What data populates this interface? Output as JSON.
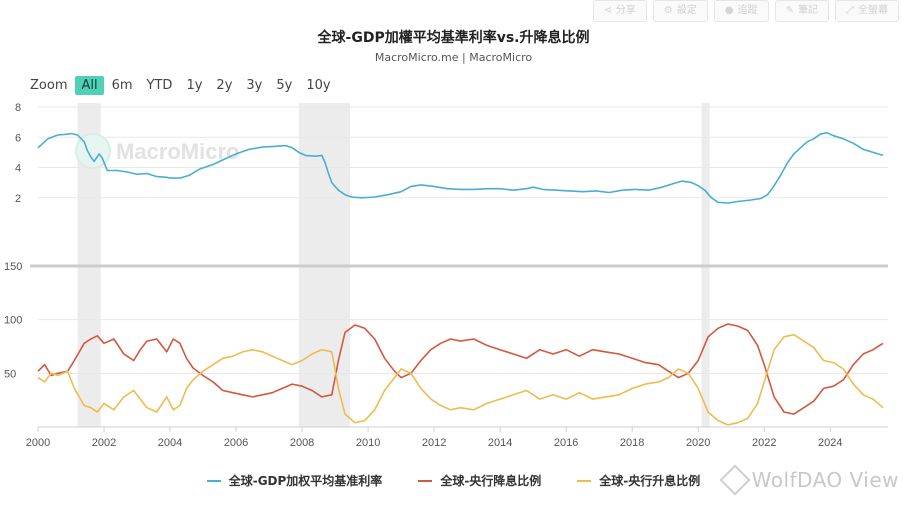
{
  "toolbar": {
    "buttons": [
      {
        "icon": "share-icon",
        "glyph": "⋖",
        "label": "分享"
      },
      {
        "icon": "gear-icon",
        "glyph": "⚙",
        "label": "設定"
      },
      {
        "icon": "user-icon",
        "glyph": "●",
        "label": "追蹤"
      },
      {
        "icon": "pencil-icon",
        "glyph": "✎",
        "label": "筆記"
      },
      {
        "icon": "expand-icon",
        "glyph": "⤢",
        "label": "全螢幕"
      }
    ]
  },
  "header": {
    "title": "全球-GDP加權平均基準利率vs.升降息比例",
    "subtitle": "MacroMicro.me | MacroMicro"
  },
  "zoom": {
    "label": "Zoom",
    "options": [
      "All",
      "6m",
      "YTD",
      "1y",
      "2y",
      "3y",
      "5y",
      "10y"
    ],
    "active": "All"
  },
  "watermarks": {
    "chart": "MacroMicro",
    "corner": "WolfDAO View"
  },
  "colors": {
    "rate": "#4aaed0",
    "cut": "#d4573f",
    "hike": "#efbb4e",
    "recession_band": "#e6e6e6",
    "grid": "#e8e8e8",
    "divider": "#cccccc"
  },
  "chart_data": [
    {
      "type": "line",
      "panel": "top",
      "ylim": [
        0,
        8
      ],
      "yticks": [
        2,
        4,
        6,
        8
      ],
      "ylabel": "",
      "xlim": [
        2000,
        2025.75
      ],
      "shaded_periods": [
        [
          2001.2,
          2001.9
        ],
        [
          2007.9,
          2009.45
        ],
        [
          2020.1,
          2020.35
        ]
      ],
      "series": [
        {
          "name": "全球-GDP加权平均基准利率",
          "color": "#4aaed0",
          "x": [
            2000.0,
            2000.3,
            2000.6,
            2000.9,
            2001.0,
            2001.2,
            2001.4,
            2001.5,
            2001.6,
            2001.7,
            2001.85,
            2001.95,
            2002.1,
            2002.4,
            2002.7,
            2002.9,
            2003.0,
            2003.3,
            2003.6,
            2003.9,
            2004.0,
            2004.3,
            2004.6,
            2004.9,
            2005.3,
            2005.6,
            2006.0,
            2006.4,
            2006.8,
            2007.2,
            2007.5,
            2007.7,
            2007.9,
            2008.1,
            2008.4,
            2008.6,
            2008.7,
            2008.8,
            2008.9,
            2009.1,
            2009.3,
            2009.5,
            2009.8,
            2010.2,
            2010.6,
            2011.0,
            2011.3,
            2011.6,
            2012.0,
            2012.4,
            2012.8,
            2013.2,
            2013.6,
            2014.0,
            2014.4,
            2014.8,
            2015.0,
            2015.3,
            2015.7,
            2016.1,
            2016.5,
            2016.9,
            2017.3,
            2017.7,
            2018.1,
            2018.5,
            2018.9,
            2019.2,
            2019.5,
            2019.8,
            2020.0,
            2020.2,
            2020.4,
            2020.6,
            2020.9,
            2021.2,
            2021.6,
            2021.9,
            2022.1,
            2022.3,
            2022.5,
            2022.7,
            2022.9,
            2023.1,
            2023.3,
            2023.5,
            2023.7,
            2023.9,
            2024.1,
            2024.4,
            2024.7,
            2025.0,
            2025.3,
            2025.6
          ],
          "values": [
            5.3,
            5.9,
            6.15,
            6.2,
            6.25,
            6.15,
            5.7,
            5.1,
            4.7,
            4.4,
            4.9,
            4.6,
            3.8,
            3.8,
            3.7,
            3.6,
            3.55,
            3.6,
            3.4,
            3.35,
            3.3,
            3.3,
            3.5,
            3.9,
            4.2,
            4.5,
            4.9,
            5.2,
            5.35,
            5.4,
            5.45,
            5.3,
            5.0,
            4.8,
            4.75,
            4.8,
            4.3,
            3.6,
            3.0,
            2.5,
            2.2,
            2.05,
            2.0,
            2.05,
            2.2,
            2.4,
            2.75,
            2.85,
            2.75,
            2.6,
            2.55,
            2.55,
            2.6,
            2.6,
            2.5,
            2.6,
            2.7,
            2.55,
            2.5,
            2.45,
            2.4,
            2.45,
            2.35,
            2.5,
            2.55,
            2.5,
            2.7,
            2.9,
            3.1,
            3.0,
            2.8,
            2.5,
            2.0,
            1.7,
            1.65,
            1.75,
            1.85,
            1.95,
            2.2,
            2.8,
            3.5,
            4.3,
            4.9,
            5.3,
            5.7,
            5.9,
            6.2,
            6.3,
            6.1,
            5.9,
            5.6,
            5.2,
            5.0,
            4.8
          ]
        }
      ]
    },
    {
      "type": "line",
      "panel": "bottom",
      "ylim": [
        0,
        150
      ],
      "yticks": [
        50,
        100,
        150
      ],
      "xlim": [
        2000,
        2025.75
      ],
      "xticks": [
        2000,
        2002,
        2004,
        2006,
        2008,
        2010,
        2012,
        2014,
        2016,
        2018,
        2020,
        2022,
        2024
      ],
      "shaded_periods": [
        [
          2001.2,
          2001.9
        ],
        [
          2007.9,
          2009.45
        ],
        [
          2020.1,
          2020.35
        ]
      ],
      "series": [
        {
          "name": "全球-央行降息比例",
          "color": "#d4573f",
          "x": [
            2000.0,
            2000.2,
            2000.4,
            2000.6,
            2000.9,
            2001.1,
            2001.4,
            2001.6,
            2001.8,
            2002.0,
            2002.3,
            2002.6,
            2002.9,
            2003.1,
            2003.3,
            2003.6,
            2003.9,
            2004.1,
            2004.3,
            2004.5,
            2004.7,
            2005.0,
            2005.3,
            2005.6,
            2005.9,
            2006.2,
            2006.5,
            2006.8,
            2007.1,
            2007.4,
            2007.7,
            2008.0,
            2008.3,
            2008.6,
            2008.9,
            2009.1,
            2009.3,
            2009.6,
            2009.9,
            2010.2,
            2010.5,
            2010.8,
            2011.0,
            2011.3,
            2011.6,
            2011.9,
            2012.2,
            2012.5,
            2012.8,
            2013.2,
            2013.6,
            2014.0,
            2014.4,
            2014.8,
            2015.2,
            2015.6,
            2016.0,
            2016.4,
            2016.8,
            2017.2,
            2017.6,
            2018.0,
            2018.4,
            2018.8,
            2019.1,
            2019.4,
            2019.7,
            2020.0,
            2020.3,
            2020.6,
            2020.9,
            2021.2,
            2021.5,
            2021.8,
            2022.0,
            2022.3,
            2022.6,
            2022.9,
            2023.2,
            2023.5,
            2023.8,
            2024.1,
            2024.4,
            2024.7,
            2025.0,
            2025.3,
            2025.6
          ],
          "values": [
            52,
            58,
            48,
            50,
            52,
            62,
            78,
            82,
            85,
            78,
            82,
            68,
            62,
            72,
            80,
            82,
            70,
            82,
            78,
            64,
            55,
            48,
            42,
            34,
            32,
            30,
            28,
            30,
            32,
            36,
            40,
            38,
            34,
            28,
            30,
            62,
            88,
            95,
            92,
            82,
            64,
            52,
            46,
            50,
            62,
            72,
            78,
            82,
            80,
            82,
            76,
            72,
            68,
            64,
            72,
            68,
            72,
            66,
            72,
            70,
            68,
            64,
            60,
            58,
            52,
            46,
            50,
            62,
            84,
            92,
            96,
            94,
            90,
            76,
            58,
            28,
            14,
            12,
            18,
            24,
            36,
            38,
            44,
            58,
            68,
            72,
            78
          ]
        },
        {
          "name": "全球-央行升息比例",
          "color": "#efbb4e",
          "x": [
            2000.0,
            2000.2,
            2000.4,
            2000.6,
            2000.9,
            2001.1,
            2001.4,
            2001.6,
            2001.8,
            2002.0,
            2002.3,
            2002.6,
            2002.9,
            2003.1,
            2003.3,
            2003.6,
            2003.9,
            2004.1,
            2004.3,
            2004.5,
            2004.7,
            2005.0,
            2005.3,
            2005.6,
            2005.9,
            2006.2,
            2006.5,
            2006.8,
            2007.1,
            2007.4,
            2007.7,
            2008.0,
            2008.3,
            2008.6,
            2008.9,
            2009.1,
            2009.3,
            2009.6,
            2009.9,
            2010.2,
            2010.5,
            2010.8,
            2011.0,
            2011.3,
            2011.6,
            2011.9,
            2012.2,
            2012.5,
            2012.8,
            2013.2,
            2013.6,
            2014.0,
            2014.4,
            2014.8,
            2015.2,
            2015.6,
            2016.0,
            2016.4,
            2016.8,
            2017.2,
            2017.6,
            2018.0,
            2018.4,
            2018.8,
            2019.1,
            2019.4,
            2019.7,
            2020.0,
            2020.3,
            2020.6,
            2020.9,
            2021.2,
            2021.5,
            2021.8,
            2022.0,
            2022.3,
            2022.6,
            2022.9,
            2023.2,
            2023.5,
            2023.8,
            2024.1,
            2024.4,
            2024.7,
            2025.0,
            2025.3,
            2025.6
          ],
          "values": [
            46,
            42,
            50,
            48,
            52,
            36,
            20,
            18,
            14,
            22,
            16,
            28,
            34,
            26,
            18,
            14,
            28,
            16,
            20,
            36,
            44,
            52,
            58,
            64,
            66,
            70,
            72,
            70,
            66,
            62,
            58,
            62,
            68,
            72,
            70,
            36,
            12,
            4,
            6,
            16,
            34,
            46,
            54,
            50,
            36,
            26,
            20,
            16,
            18,
            16,
            22,
            26,
            30,
            34,
            26,
            30,
            26,
            32,
            26,
            28,
            30,
            36,
            40,
            42,
            46,
            54,
            50,
            36,
            14,
            6,
            2,
            4,
            8,
            22,
            42,
            72,
            84,
            86,
            80,
            74,
            62,
            60,
            54,
            40,
            30,
            26,
            18
          ]
        }
      ]
    }
  ],
  "legend": {
    "position": "bottom-center",
    "items": [
      "全球-GDP加权平均基准利率",
      "全球-央行降息比例",
      "全球-央行升息比例"
    ]
  }
}
